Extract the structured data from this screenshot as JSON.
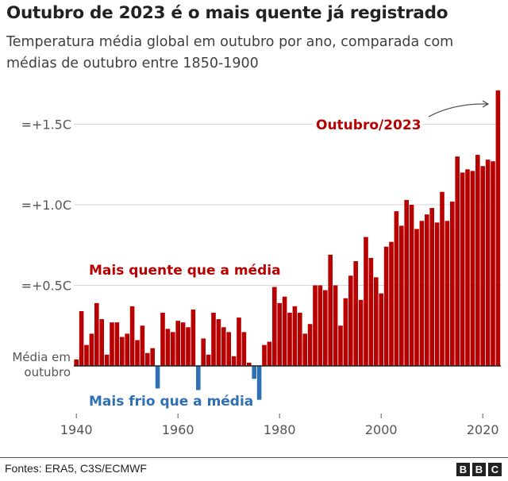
{
  "header": {
    "title": "Outubro de 2023 é o mais quente já registrado",
    "subtitle": "Temperatura média global em outubro por ano, comparada com médias de outubro entre 1850-1900"
  },
  "chart_data": {
    "type": "bar",
    "title": "Outubro de 2023 é o mais quente já registrado",
    "subtitle": "Temperatura média global em outubro por ano, comparada com médias de outubro entre 1850-1900",
    "xlabel": "",
    "ylabel": "",
    "ylim": [
      -0.3,
      1.75
    ],
    "grid": true,
    "x_ticks": [
      "1940",
      "1960",
      "1980",
      "2000",
      "2020"
    ],
    "y_ticks": [
      {
        "value": 0,
        "label_line1": "Média em",
        "label_line2": "outubro"
      },
      {
        "value": 0.5,
        "label": "=+0.5C"
      },
      {
        "value": 1.0,
        "label": "=+1.0C"
      },
      {
        "value": 1.5,
        "label": "=+1.5C"
      }
    ],
    "x": [
      1940,
      1941,
      1942,
      1943,
      1944,
      1945,
      1946,
      1947,
      1948,
      1949,
      1950,
      1951,
      1952,
      1953,
      1954,
      1955,
      1956,
      1957,
      1958,
      1959,
      1960,
      1961,
      1962,
      1963,
      1964,
      1965,
      1966,
      1967,
      1968,
      1969,
      1970,
      1971,
      1972,
      1973,
      1974,
      1975,
      1976,
      1977,
      1978,
      1979,
      1980,
      1981,
      1982,
      1983,
      1984,
      1985,
      1986,
      1987,
      1988,
      1989,
      1990,
      1991,
      1992,
      1993,
      1994,
      1995,
      1996,
      1997,
      1998,
      1999,
      2000,
      2001,
      2002,
      2003,
      2004,
      2005,
      2006,
      2007,
      2008,
      2009,
      2010,
      2011,
      2012,
      2013,
      2014,
      2015,
      2016,
      2017,
      2018,
      2019,
      2020,
      2021,
      2022,
      2023
    ],
    "values": [
      0.04,
      0.34,
      0.13,
      0.2,
      0.39,
      0.29,
      0.07,
      0.27,
      0.27,
      0.18,
      0.2,
      0.37,
      0.16,
      0.25,
      0.08,
      0.11,
      -0.14,
      0.33,
      0.23,
      0.21,
      0.28,
      0.27,
      0.24,
      0.35,
      -0.15,
      0.17,
      0.07,
      0.33,
      0.29,
      0.24,
      0.21,
      0.06,
      0.3,
      0.21,
      0.02,
      -0.08,
      -0.21,
      0.13,
      0.15,
      0.49,
      0.39,
      0.43,
      0.33,
      0.37,
      0.33,
      0.2,
      0.26,
      0.5,
      0.5,
      0.47,
      0.69,
      0.5,
      0.25,
      0.42,
      0.56,
      0.65,
      0.41,
      0.8,
      0.67,
      0.55,
      0.45,
      0.74,
      0.77,
      0.96,
      0.87,
      1.03,
      1.0,
      0.85,
      0.9,
      0.94,
      0.98,
      0.89,
      1.08,
      0.9,
      1.02,
      1.3,
      1.2,
      1.22,
      1.21,
      1.31,
      1.24,
      1.28,
      1.27,
      1.71
    ],
    "annotations": {
      "warm": "Mais quente que a média",
      "cold": "Mais frio que a média",
      "highlight": "Outubro/2023"
    },
    "colors": {
      "positive": "#b80000",
      "negative": "#2f70b4"
    }
  },
  "footer": {
    "source": "Fontes: ERA5, C3S/ECMWF",
    "logo": [
      "B",
      "B",
      "C"
    ]
  }
}
